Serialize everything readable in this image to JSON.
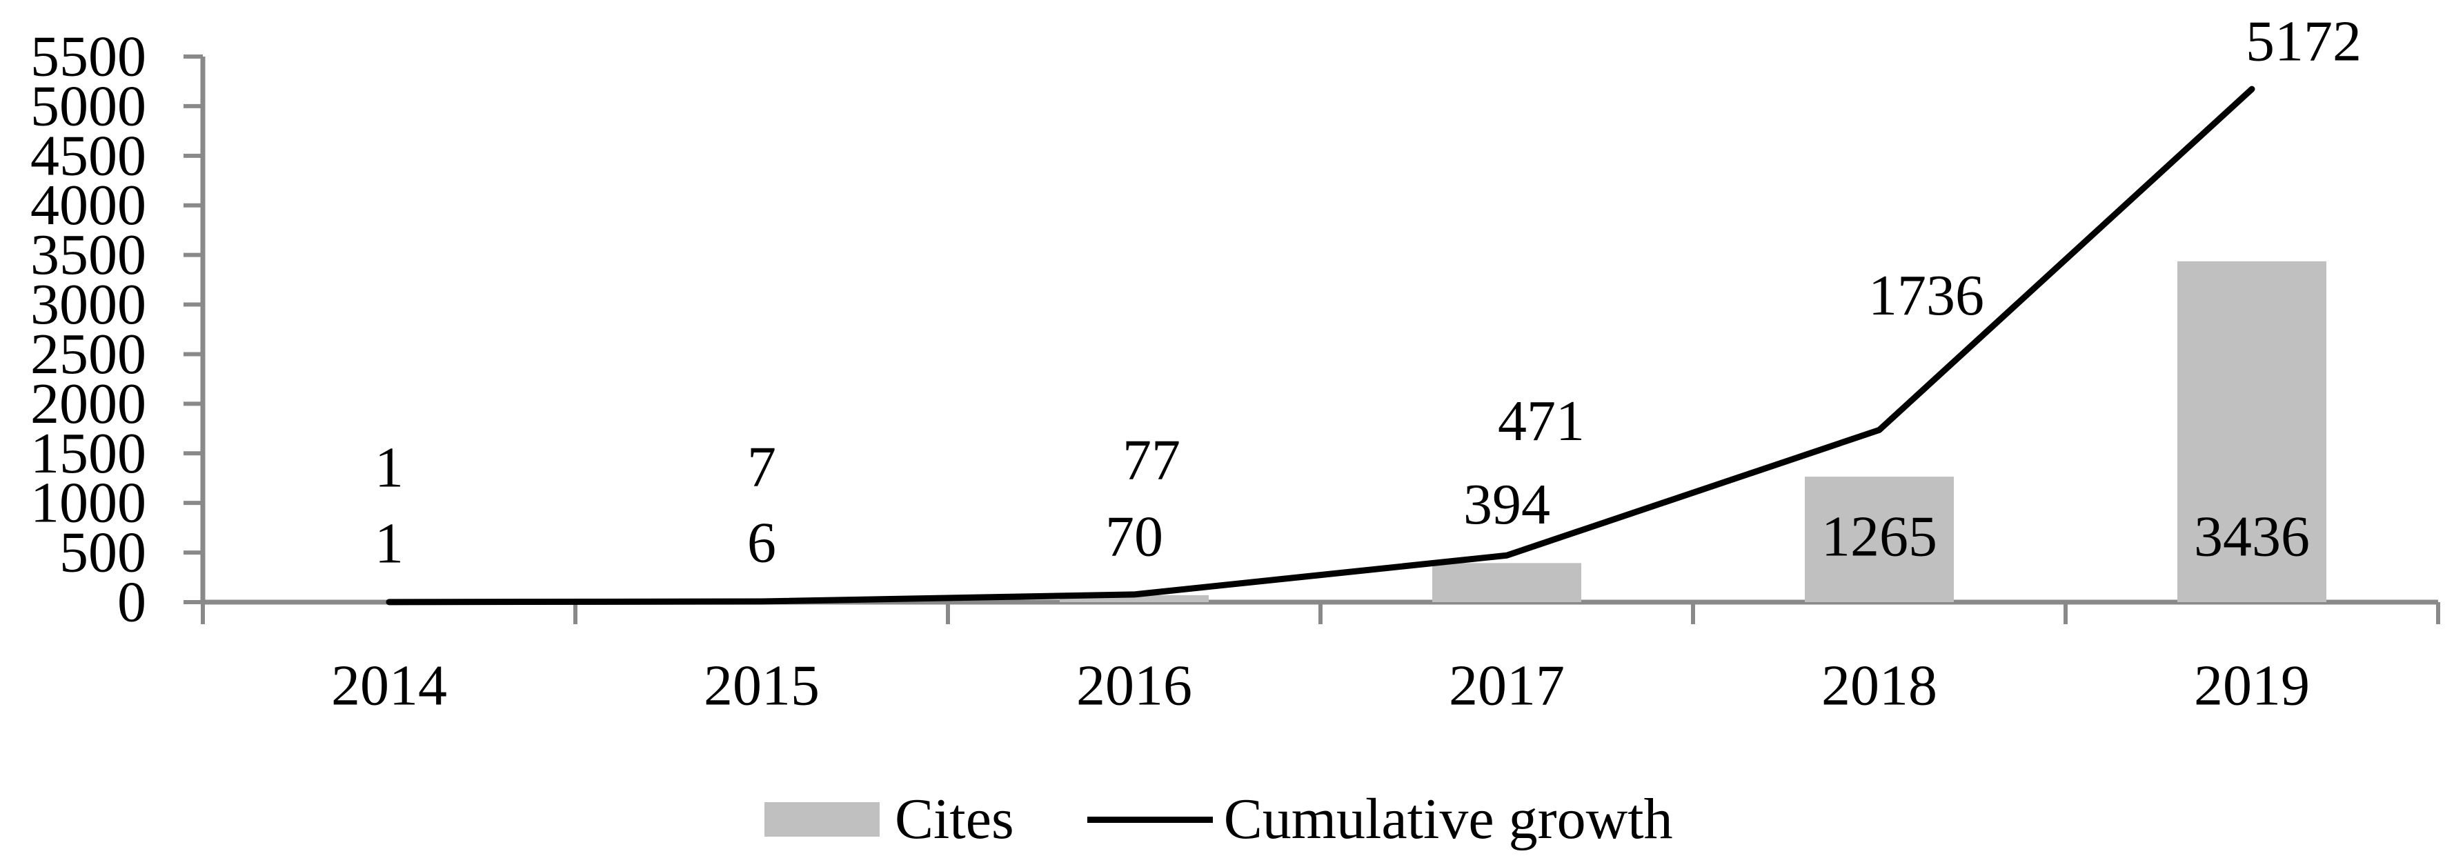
{
  "chart_data": {
    "type": "combo-bar-line",
    "title": "",
    "categories": [
      "2014",
      "2015",
      "2016",
      "2017",
      "2018",
      "2019"
    ],
    "series": [
      {
        "name": "Cites",
        "type": "bar",
        "color": "#c0c0c0",
        "values": [
          1,
          6,
          70,
          394,
          1265,
          3436
        ],
        "data_labels": [
          "1",
          "6",
          "70",
          "394",
          "1265",
          "3436"
        ]
      },
      {
        "name": "Cumulative growth",
        "type": "line",
        "color": "#000000",
        "values": [
          1,
          7,
          77,
          471,
          1736,
          5172
        ],
        "data_labels": [
          "1",
          "7",
          "77",
          "471",
          "1736",
          "5172"
        ]
      }
    ],
    "y_axis": {
      "min": 0,
      "max": 5500,
      "step": 500,
      "ticks": [
        0,
        500,
        1000,
        1500,
        2000,
        2500,
        3000,
        3500,
        4000,
        4500,
        5000,
        5500
      ]
    },
    "x_axis": {
      "ticks_between_categories": true
    },
    "grid": false,
    "data_labels_shown": true,
    "legend_position": "bottom",
    "axis_color": "#898989",
    "text_color": "#000000",
    "background": "#ffffff"
  }
}
